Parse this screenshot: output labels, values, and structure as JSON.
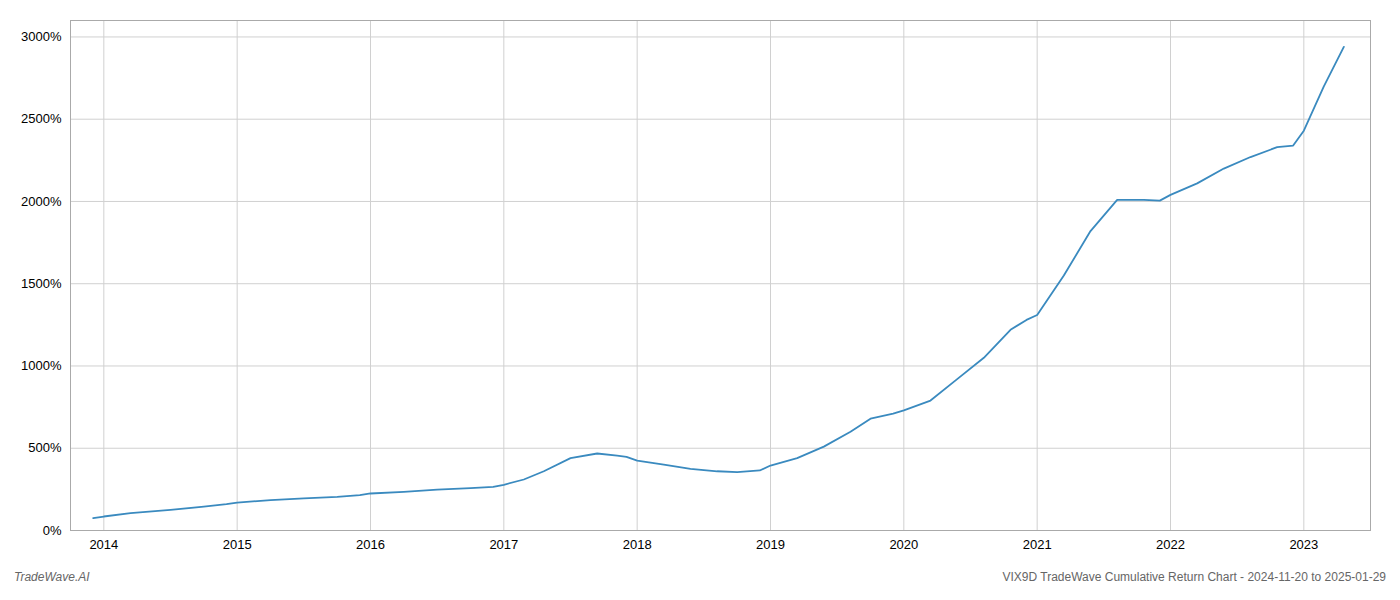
{
  "chart_data": {
    "type": "line",
    "annotations": [
      "TradeWave.AI",
      "VIX9D TradeWave Cumulative Return Chart - 2024-11-20 to 2025-01-29"
    ],
    "color": "#3a8abf",
    "x": [
      2013.92,
      2014.0,
      2014.2,
      2014.5,
      2014.75,
      2014.92,
      2015.0,
      2015.25,
      2015.5,
      2015.75,
      2015.92,
      2016.0,
      2016.25,
      2016.5,
      2016.75,
      2016.92,
      2017.0,
      2017.15,
      2017.3,
      2017.5,
      2017.7,
      2017.85,
      2017.92,
      2018.0,
      2018.2,
      2018.4,
      2018.6,
      2018.75,
      2018.92,
      2019.0,
      2019.2,
      2019.4,
      2019.6,
      2019.75,
      2019.92,
      2020.0,
      2020.2,
      2020.4,
      2020.6,
      2020.8,
      2020.92,
      2021.0,
      2021.2,
      2021.4,
      2021.6,
      2021.8,
      2021.92,
      2022.0,
      2022.2,
      2022.4,
      2022.6,
      2022.8,
      2022.92,
      2023.0,
      2023.15,
      2023.3
    ],
    "values": [
      75,
      85,
      105,
      125,
      145,
      160,
      170,
      185,
      195,
      205,
      215,
      225,
      235,
      248,
      258,
      265,
      278,
      310,
      360,
      440,
      468,
      455,
      448,
      425,
      400,
      375,
      360,
      355,
      365,
      395,
      440,
      510,
      600,
      680,
      710,
      730,
      790,
      920,
      1050,
      1220,
      1280,
      1310,
      1550,
      1820,
      2010,
      2010,
      2005,
      2040,
      2110,
      2200,
      2270,
      2330,
      2340,
      2430,
      2700,
      2940
    ],
    "xlim": [
      2013.75,
      2023.5
    ],
    "xticks": [
      2014,
      2015,
      2016,
      2017,
      2018,
      2019,
      2020,
      2021,
      2022,
      2023
    ],
    "ylim": [
      0,
      3100
    ],
    "yticks": [
      {
        "value": 0,
        "label": "0%"
      },
      {
        "value": 500,
        "label": "500%"
      },
      {
        "value": 1000,
        "label": "1000%"
      },
      {
        "value": 1500,
        "label": "1500%"
      },
      {
        "value": 2000,
        "label": "2000%"
      },
      {
        "value": 2500,
        "label": "2500%"
      },
      {
        "value": 3000,
        "label": "3000%"
      }
    ],
    "grid": true
  }
}
